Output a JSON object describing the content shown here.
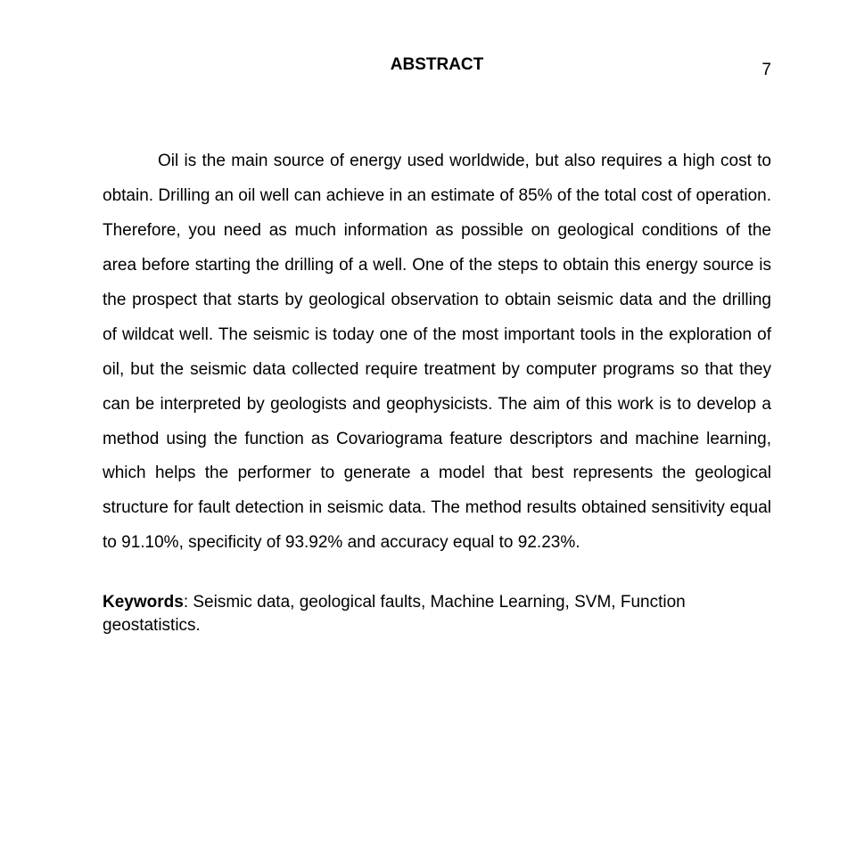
{
  "page_number": "7",
  "heading": "ABSTRACT",
  "body_text": "Oil is the main source of energy used worldwide, but also requires a high cost to obtain. Drilling an oil well can achieve in an estimate of 85% of the total cost of operation. Therefore, you need as much information as possible on geological conditions of the area before starting the drilling of a well. One of the steps to obtain this energy source is the prospect that starts by geological observation to obtain seismic data and the drilling of wildcat well. The seismic is today one of the most important tools in the exploration of oil, but the seismic data collected require treatment by computer programs so that they can be interpreted by geologists and geophysicists. The aim of this work is to develop a method using the function as Covariograma feature descriptors and machine learning, which helps the performer to generate a model that best represents the geological structure for fault detection in seismic data. The method results obtained sensitivity equal to 91.10%, specificity of 93.92% and accuracy equal to 92.23%.",
  "keywords_label": "Keywords",
  "keywords_text": ": Seismic data, geological faults, Machine Learning, SVM, Function geostatistics."
}
